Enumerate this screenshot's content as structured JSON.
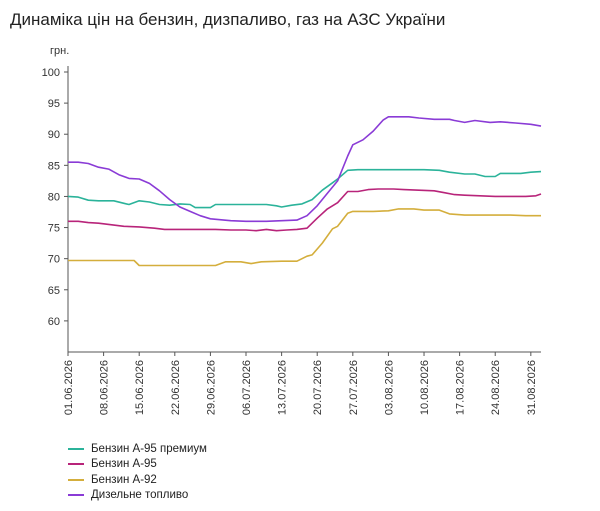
{
  "title": "Динаміка цін на бензин, дизпаливо, газ на АЗС України",
  "chart_data": {
    "type": "line",
    "unit_label": "грн.",
    "ylim": [
      55,
      100
    ],
    "yticks": [
      60,
      65,
      70,
      75,
      80,
      85,
      90,
      95,
      100
    ],
    "x_start": "01.06.2026",
    "x_end": "02.09.2026",
    "xticks": [
      "01.06.2026",
      "08.06.2026",
      "15.06.2026",
      "22.06.2026",
      "29.06.2026",
      "06.07.2026",
      "13.07.2026",
      "20.07.2026",
      "27.07.2026",
      "03.08.2026",
      "10.08.2026",
      "17.08.2026",
      "24.08.2026",
      "31.08.2026"
    ],
    "grid": false,
    "legend_position": "bottom-left",
    "series": [
      {
        "name": "Бензин А-95 премиум",
        "color": "#2bb39a",
        "points": [
          [
            "01.06.2026",
            80.0
          ],
          [
            "03.06.2026",
            79.9
          ],
          [
            "05.06.2026",
            79.4
          ],
          [
            "07.06.2026",
            79.3
          ],
          [
            "10.06.2026",
            79.3
          ],
          [
            "12.06.2026",
            78.9
          ],
          [
            "13.06.2026",
            78.7
          ],
          [
            "15.06.2026",
            79.3
          ],
          [
            "17.06.2026",
            79.1
          ],
          [
            "19.06.2026",
            78.7
          ],
          [
            "21.06.2026",
            78.6
          ],
          [
            "23.06.2026",
            78.8
          ],
          [
            "25.06.2026",
            78.7
          ],
          [
            "26.06.2026",
            78.2
          ],
          [
            "29.06.2026",
            78.2
          ],
          [
            "30.06.2026",
            78.7
          ],
          [
            "05.07.2026",
            78.7
          ],
          [
            "10.07.2026",
            78.7
          ],
          [
            "12.07.2026",
            78.5
          ],
          [
            "13.07.2026",
            78.3
          ],
          [
            "15.07.2026",
            78.6
          ],
          [
            "17.07.2026",
            78.8
          ],
          [
            "19.07.2026",
            79.5
          ],
          [
            "21.07.2026",
            81.0
          ],
          [
            "23.07.2026",
            82.2
          ],
          [
            "24.07.2026",
            82.8
          ],
          [
            "26.07.2026",
            84.2
          ],
          [
            "28.07.2026",
            84.3
          ],
          [
            "01.08.2026",
            84.3
          ],
          [
            "05.08.2026",
            84.3
          ],
          [
            "10.08.2026",
            84.3
          ],
          [
            "13.08.2026",
            84.2
          ],
          [
            "15.08.2026",
            83.9
          ],
          [
            "18.08.2026",
            83.6
          ],
          [
            "20.08.2026",
            83.6
          ],
          [
            "22.08.2026",
            83.2
          ],
          [
            "24.08.2026",
            83.2
          ],
          [
            "25.08.2026",
            83.7
          ],
          [
            "29.08.2026",
            83.7
          ],
          [
            "31.08.2026",
            83.9
          ],
          [
            "02.09.2026",
            84.0
          ]
        ]
      },
      {
        "name": "Бензин А-95",
        "color": "#b8247a",
        "points": [
          [
            "01.06.2026",
            76.0
          ],
          [
            "03.06.2026",
            76.0
          ],
          [
            "05.06.2026",
            75.8
          ],
          [
            "07.06.2026",
            75.7
          ],
          [
            "10.06.2026",
            75.4
          ],
          [
            "12.06.2026",
            75.2
          ],
          [
            "15.06.2026",
            75.1
          ],
          [
            "18.06.2026",
            74.9
          ],
          [
            "20.06.2026",
            74.7
          ],
          [
            "25.06.2026",
            74.7
          ],
          [
            "30.06.2026",
            74.7
          ],
          [
            "03.07.2026",
            74.6
          ],
          [
            "06.07.2026",
            74.6
          ],
          [
            "08.07.2026",
            74.5
          ],
          [
            "10.07.2026",
            74.7
          ],
          [
            "12.07.2026",
            74.5
          ],
          [
            "14.07.2026",
            74.6
          ],
          [
            "16.07.2026",
            74.7
          ],
          [
            "18.07.2026",
            74.9
          ],
          [
            "20.07.2026",
            76.5
          ],
          [
            "22.07.2026",
            78.0
          ],
          [
            "24.07.2026",
            79.0
          ],
          [
            "26.07.2026",
            80.8
          ],
          [
            "28.07.2026",
            80.8
          ],
          [
            "30.07.2026",
            81.1
          ],
          [
            "01.08.2026",
            81.2
          ],
          [
            "04.08.2026",
            81.2
          ],
          [
            "06.08.2026",
            81.1
          ],
          [
            "09.08.2026",
            81.0
          ],
          [
            "12.08.2026",
            80.9
          ],
          [
            "14.08.2026",
            80.6
          ],
          [
            "16.08.2026",
            80.3
          ],
          [
            "18.08.2026",
            80.2
          ],
          [
            "21.08.2026",
            80.1
          ],
          [
            "24.08.2026",
            80.0
          ],
          [
            "27.08.2026",
            80.0
          ],
          [
            "30.08.2026",
            80.0
          ],
          [
            "01.09.2026",
            80.1
          ],
          [
            "02.09.2026",
            80.4
          ]
        ]
      },
      {
        "name": "Бензин А-92",
        "color": "#d4ae3c",
        "points": [
          [
            "01.06.2026",
            69.7
          ],
          [
            "05.06.2026",
            69.7
          ],
          [
            "10.06.2026",
            69.7
          ],
          [
            "14.06.2026",
            69.7
          ],
          [
            "15.06.2026",
            68.9
          ],
          [
            "20.06.2026",
            68.9
          ],
          [
            "25.06.2026",
            68.9
          ],
          [
            "30.06.2026",
            68.9
          ],
          [
            "02.07.2026",
            69.5
          ],
          [
            "05.07.2026",
            69.5
          ],
          [
            "07.07.2026",
            69.2
          ],
          [
            "09.07.2026",
            69.5
          ],
          [
            "13.07.2026",
            69.6
          ],
          [
            "16.07.2026",
            69.6
          ],
          [
            "18.07.2026",
            70.4
          ],
          [
            "19.07.2026",
            70.6
          ],
          [
            "21.07.2026",
            72.5
          ],
          [
            "23.07.2026",
            74.8
          ],
          [
            "24.07.2026",
            75.2
          ],
          [
            "26.07.2026",
            77.3
          ],
          [
            "27.07.2026",
            77.6
          ],
          [
            "31.07.2026",
            77.6
          ],
          [
            "03.08.2026",
            77.7
          ],
          [
            "05.08.2026",
            78.0
          ],
          [
            "08.08.2026",
            78.0
          ],
          [
            "10.08.2026",
            77.8
          ],
          [
            "13.08.2026",
            77.8
          ],
          [
            "15.08.2026",
            77.2
          ],
          [
            "18.08.2026",
            77.0
          ],
          [
            "20.08.2026",
            77.0
          ],
          [
            "24.08.2026",
            77.0
          ],
          [
            "27.08.2026",
            77.0
          ],
          [
            "30.08.2026",
            76.9
          ],
          [
            "02.09.2026",
            76.9
          ]
        ]
      },
      {
        "name": "Дизельне топливо",
        "color": "#8a3bd6",
        "points": [
          [
            "01.06.2026",
            85.5
          ],
          [
            "03.06.2026",
            85.5
          ],
          [
            "05.06.2026",
            85.3
          ],
          [
            "07.06.2026",
            84.7
          ],
          [
            "09.06.2026",
            84.4
          ],
          [
            "11.06.2026",
            83.5
          ],
          [
            "13.06.2026",
            82.9
          ],
          [
            "15.06.2026",
            82.8
          ],
          [
            "17.06.2026",
            82.1
          ],
          [
            "19.06.2026",
            80.9
          ],
          [
            "21.06.2026",
            79.5
          ],
          [
            "23.06.2026",
            78.3
          ],
          [
            "25.06.2026",
            77.6
          ],
          [
            "27.06.2026",
            76.9
          ],
          [
            "29.06.2026",
            76.4
          ],
          [
            "03.07.2026",
            76.1
          ],
          [
            "06.07.2026",
            76.0
          ],
          [
            "10.07.2026",
            76.0
          ],
          [
            "13.07.2026",
            76.1
          ],
          [
            "16.07.2026",
            76.2
          ],
          [
            "18.07.2026",
            76.9
          ],
          [
            "20.07.2026",
            78.5
          ],
          [
            "22.07.2026",
            80.5
          ],
          [
            "24.07.2026",
            82.5
          ],
          [
            "26.07.2026",
            86.5
          ],
          [
            "27.07.2026",
            88.3
          ],
          [
            "29.07.2026",
            89.1
          ],
          [
            "31.07.2026",
            90.5
          ],
          [
            "02.08.2026",
            92.3
          ],
          [
            "03.08.2026",
            92.8
          ],
          [
            "07.08.2026",
            92.8
          ],
          [
            "09.08.2026",
            92.6
          ],
          [
            "12.08.2026",
            92.4
          ],
          [
            "15.08.2026",
            92.4
          ],
          [
            "16.08.2026",
            92.2
          ],
          [
            "18.08.2026",
            91.9
          ],
          [
            "20.08.2026",
            92.2
          ],
          [
            "23.08.2026",
            91.9
          ],
          [
            "25.08.2026",
            92.0
          ],
          [
            "28.08.2026",
            91.8
          ],
          [
            "31.08.2026",
            91.6
          ],
          [
            "02.09.2026",
            91.3
          ]
        ]
      }
    ]
  }
}
